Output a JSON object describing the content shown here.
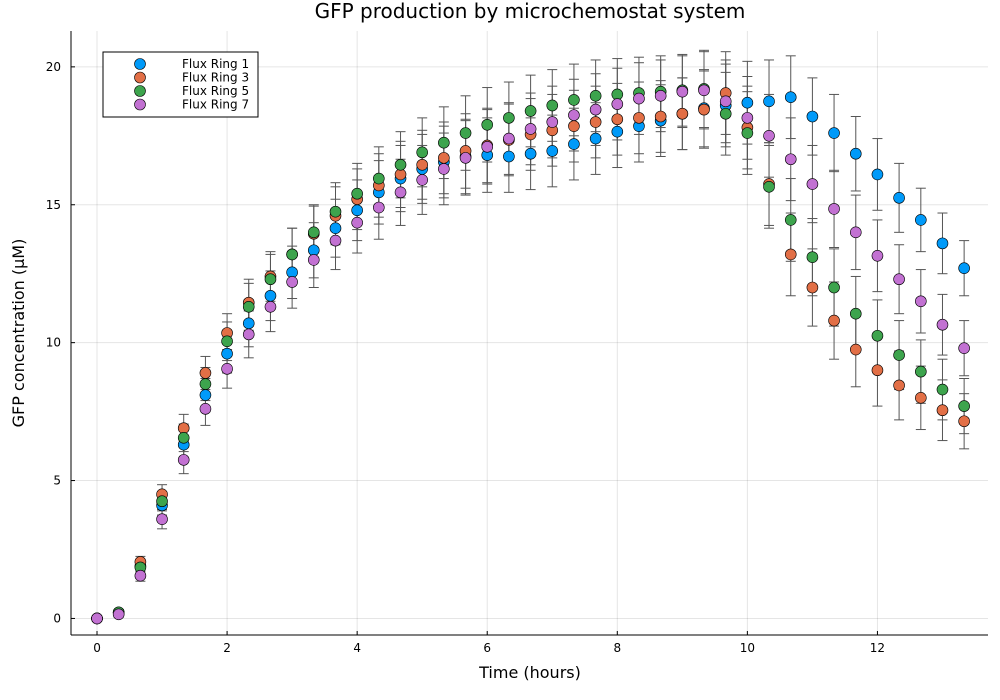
{
  "chart_data": {
    "type": "scatter",
    "title": "GFP production by microchemostat system",
    "xlabel": "Time (hours)",
    "ylabel": "GFP concentration (μM)",
    "xlim": [
      -0.4,
      13.7
    ],
    "ylim": [
      -0.6,
      21.3
    ],
    "xticks": [
      0,
      2,
      4,
      6,
      8,
      10,
      12
    ],
    "yticks": [
      0,
      5,
      10,
      15,
      20
    ],
    "grid": true,
    "legend_position": "top-left",
    "x": [
      0,
      0.333,
      0.667,
      1.0,
      1.333,
      1.667,
      2.0,
      2.333,
      2.667,
      3.0,
      3.333,
      3.667,
      4.0,
      4.333,
      4.667,
      5.0,
      5.333,
      5.667,
      6.0,
      6.333,
      6.667,
      7.0,
      7.333,
      7.667,
      8.0,
      8.333,
      8.667,
      9.0,
      9.333,
      9.667,
      10.0,
      10.333,
      10.667,
      11.0,
      11.333,
      11.667,
      12.0,
      12.333,
      12.667,
      13.0,
      13.333
    ],
    "series": [
      {
        "name": "Flux Ring 1",
        "color": "#009af9",
        "values": [
          0.0,
          0.22,
          1.9,
          4.1,
          6.3,
          8.1,
          9.6,
          10.7,
          11.7,
          12.55,
          13.35,
          14.15,
          14.8,
          15.45,
          15.95,
          16.3,
          16.55,
          16.75,
          16.8,
          16.75,
          16.85,
          16.95,
          17.2,
          17.4,
          17.65,
          17.85,
          18.05,
          18.3,
          18.5,
          18.6,
          18.7,
          18.75,
          18.9,
          18.2,
          17.6,
          16.85,
          16.1,
          15.25,
          14.45,
          13.6,
          12.7
        ],
        "errors": [
          0.1,
          0.1,
          0.2,
          0.35,
          0.5,
          0.6,
          0.7,
          0.85,
          0.9,
          0.95,
          1.0,
          1.05,
          1.1,
          1.15,
          1.2,
          1.25,
          1.3,
          1.35,
          1.35,
          1.3,
          1.3,
          1.3,
          1.3,
          1.3,
          1.3,
          1.3,
          1.3,
          1.3,
          1.4,
          1.5,
          1.5,
          1.5,
          1.5,
          1.4,
          1.4,
          1.35,
          1.3,
          1.25,
          1.15,
          1.1,
          1.0
        ]
      },
      {
        "name": "Flux Ring 3",
        "color": "#e26f46",
        "values": [
          0.0,
          0.2,
          2.05,
          4.5,
          6.9,
          8.9,
          10.35,
          11.45,
          12.4,
          13.2,
          13.95,
          14.6,
          15.2,
          15.7,
          16.1,
          16.45,
          16.7,
          16.95,
          17.15,
          17.35,
          17.55,
          17.7,
          17.85,
          18.0,
          18.1,
          18.15,
          18.2,
          18.3,
          18.45,
          19.05,
          17.8,
          15.75,
          13.2,
          12.0,
          10.8,
          9.75,
          9.0,
          8.45,
          8.0,
          7.55,
          7.15
        ]
      },
      {
        "name": "Flux Ring 5",
        "color": "#3da44d",
        "values": [
          0.0,
          0.22,
          1.85,
          4.25,
          6.55,
          8.5,
          10.05,
          11.3,
          12.3,
          13.2,
          14.0,
          14.75,
          15.4,
          15.95,
          16.45,
          16.9,
          17.25,
          17.6,
          17.9,
          18.15,
          18.4,
          18.6,
          18.8,
          18.95,
          19.0,
          19.05,
          19.1,
          19.15,
          19.2,
          18.3,
          17.6,
          15.65,
          14.45,
          13.1,
          12.0,
          11.05,
          10.25,
          9.55,
          8.95,
          8.3,
          7.7
        ]
      },
      {
        "name": "Flux Ring 7",
        "color": "#c271d2",
        "values": [
          0.0,
          0.15,
          1.55,
          3.6,
          5.75,
          7.6,
          9.05,
          10.3,
          11.3,
          12.2,
          13.0,
          13.7,
          14.35,
          14.9,
          15.45,
          15.9,
          16.3,
          16.7,
          17.1,
          17.4,
          17.75,
          18.0,
          18.25,
          18.45,
          18.65,
          18.85,
          18.95,
          19.1,
          19.15,
          18.75,
          18.15,
          17.5,
          16.65,
          15.75,
          14.85,
          14.0,
          13.15,
          12.3,
          11.5,
          10.65,
          9.8
        ]
      }
    ]
  }
}
